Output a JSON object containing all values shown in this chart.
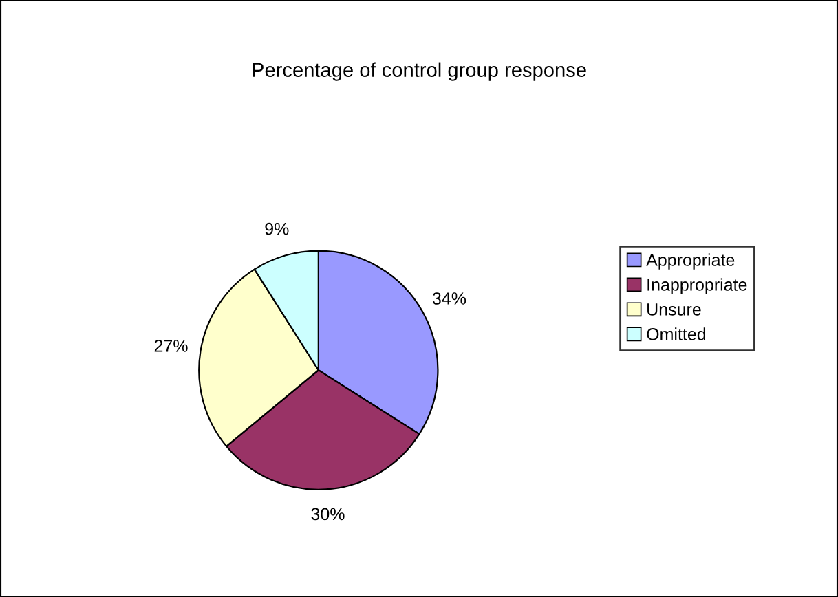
{
  "chart_data": {
    "type": "pie",
    "title": "Percentage of control group response",
    "categories": [
      "Appropriate",
      "Inappropriate",
      "Unsure",
      "Omitted"
    ],
    "values": [
      34,
      30,
      27,
      9
    ],
    "value_labels": [
      "34%",
      "30%",
      "27%",
      "9%"
    ],
    "colors": [
      "#9999ff",
      "#993366",
      "#ffffcc",
      "#ccffff"
    ],
    "legend": "right"
  }
}
